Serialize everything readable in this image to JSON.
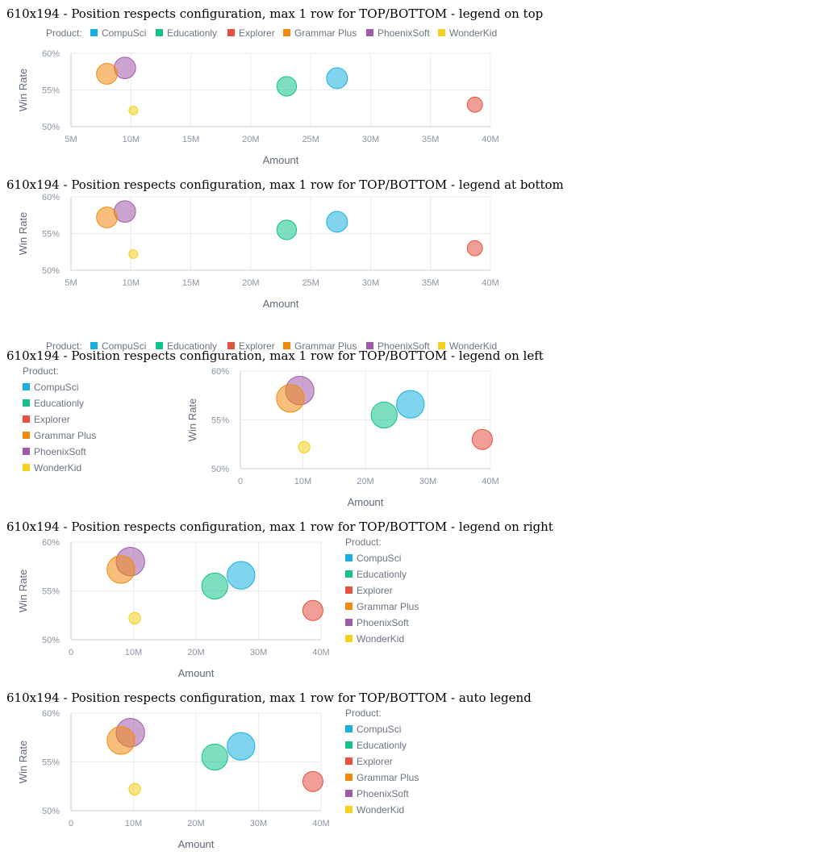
{
  "sections": [
    {
      "title": "610x194 - Position respects configuration, max 1 row for TOP/BOTTOM - legend on top",
      "legend_position": "top"
    },
    {
      "title": "610x194 - Position respects configuration, max 1 row for TOP/BOTTOM - legend at bottom",
      "legend_position": "bottom"
    },
    {
      "title": "610x194 - Position respects configuration, max 1 row for TOP/BOTTOM - legend on left",
      "legend_position": "left"
    },
    {
      "title": "610x194 - Position respects configuration, max 1 row for TOP/BOTTOM - legend on right",
      "legend_position": "right"
    },
    {
      "title": "610x194 - Position respects configuration, max 1 row for TOP/BOTTOM - auto legend",
      "legend_position": "auto (right)"
    }
  ],
  "chart_data": {
    "type": "scatter",
    "subtype": "bubble",
    "xlabel": "Amount",
    "ylabel": "Win Rate",
    "legend_title": "Product:",
    "x_ticks_wide": [
      "5M",
      "10M",
      "15M",
      "20M",
      "25M",
      "30M",
      "35M",
      "40M"
    ],
    "x_ticks_narrow": [
      "0",
      "10M",
      "20M",
      "30M",
      "40M"
    ],
    "y_ticks": [
      "50%",
      "55%",
      "60%"
    ],
    "ylim": [
      50,
      60
    ],
    "grid": true,
    "series": [
      {
        "name": "CompuSci",
        "color": "#17b0e0",
        "x": 27200000,
        "y": 56.6,
        "size": 0.85
      },
      {
        "name": "Educationly",
        "color": "#12c28d",
        "x": 23000000,
        "y": 55.5,
        "size": 0.75
      },
      {
        "name": "Explorer",
        "color": "#e6503f",
        "x": 38700000,
        "y": 53.0,
        "size": 0.45
      },
      {
        "name": "Grammar Plus",
        "color": "#f28a10",
        "x": 8000000,
        "y": 57.2,
        "size": 0.85
      },
      {
        "name": "PhoenixSoft",
        "color": "#a05aaa",
        "x": 9500000,
        "y": 58.0,
        "size": 0.9
      },
      {
        "name": "WonderKid",
        "color": "#f5d01e",
        "x": 10200000,
        "y": 52.2,
        "size": 0.15
      }
    ]
  }
}
